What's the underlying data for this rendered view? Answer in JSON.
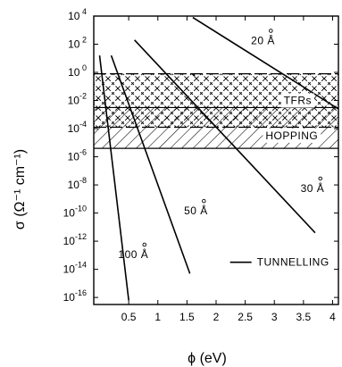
{
  "chart_data": {
    "type": "line",
    "xlabel": "ϕ (eV)",
    "ylabel": "σ (Ω⁻¹ cm⁻¹)",
    "xlim": [
      -0.1,
      4.1
    ],
    "ylim": [
      -16.5,
      4
    ],
    "y_scale": "log10",
    "x_ticks": [
      {
        "value": 0.5,
        "label": "0.5"
      },
      {
        "value": 1,
        "label": "1"
      },
      {
        "value": 1.5,
        "label": "1.5"
      },
      {
        "value": 2,
        "label": "2"
      },
      {
        "value": 2.5,
        "label": "2.5"
      },
      {
        "value": 3,
        "label": "3"
      },
      {
        "value": 3.5,
        "label": "3.5"
      },
      {
        "value": 4,
        "label": "4"
      }
    ],
    "y_ticks": [
      {
        "exp": 4,
        "base": "10",
        "power": " 4"
      },
      {
        "exp": 2,
        "base": "10",
        "power": " 2"
      },
      {
        "exp": 0,
        "base": "10",
        "power": " 0"
      },
      {
        "exp": -2,
        "base": "10",
        "power": "-2"
      },
      {
        "exp": -4,
        "base": "10",
        "power": "-4"
      },
      {
        "exp": -6,
        "base": "10",
        "power": "-6"
      },
      {
        "exp": -8,
        "base": "10",
        "power": "-8"
      },
      {
        "exp": -10,
        "base": "10",
        "power": "-10"
      },
      {
        "exp": -12,
        "base": "10",
        "power": "-12"
      },
      {
        "exp": -14,
        "base": "10",
        "power": "-14"
      },
      {
        "exp": -16,
        "base": "10",
        "power": "-16"
      }
    ],
    "series": [
      {
        "name": "20 Å",
        "label_number": "20",
        "label_unit": "Å",
        "label_at": {
          "x": 2.6,
          "log_y": 2.0
        },
        "points": [
          {
            "x": 1.6,
            "log_y": 3.9
          },
          {
            "x": 4.1,
            "log_y": -2.6
          }
        ]
      },
      {
        "name": "30 Å",
        "label_number": "30",
        "label_unit": "Å",
        "label_at": {
          "x": 3.45,
          "log_y": -8.5
        },
        "points": [
          {
            "x": 0.6,
            "log_y": 2.3
          },
          {
            "x": 3.7,
            "log_y": -11.4
          }
        ]
      },
      {
        "name": "50 Å",
        "label_number": "50",
        "label_unit": "Å",
        "label_at": {
          "x": 1.45,
          "log_y": -10.1
        },
        "points": [
          {
            "x": 0.2,
            "log_y": 1.2
          },
          {
            "x": 1.55,
            "log_y": -14.3
          }
        ]
      },
      {
        "name": "100 Å",
        "label_number": "100",
        "label_unit": "Å",
        "label_at": {
          "x": 0.32,
          "log_y": -13.2
        },
        "points": [
          {
            "x": 0.0,
            "log_y": 1.2
          },
          {
            "x": 0.5,
            "log_y": -16.2
          }
        ]
      }
    ],
    "bands": [
      {
        "name": "TFRs",
        "label": "TFRs",
        "from_log_y": -3.9,
        "to_log_y": -0.1,
        "hatch": "dashed-cross",
        "label_at": {
          "x": 3.4,
          "log_y": -2.0
        }
      },
      {
        "name": "HOPPING",
        "label": "HOPPING",
        "from_log_y": -5.4,
        "to_log_y": -2.5,
        "hatch": "diagonal",
        "label_at": {
          "x": 3.3,
          "log_y": -4.5
        }
      }
    ],
    "legend": {
      "label": "TUNNELLING",
      "symbol": "solid-line",
      "position": "lower-right",
      "at": {
        "x": 2.7,
        "log_y": -13.5
      }
    },
    "grid": false
  }
}
